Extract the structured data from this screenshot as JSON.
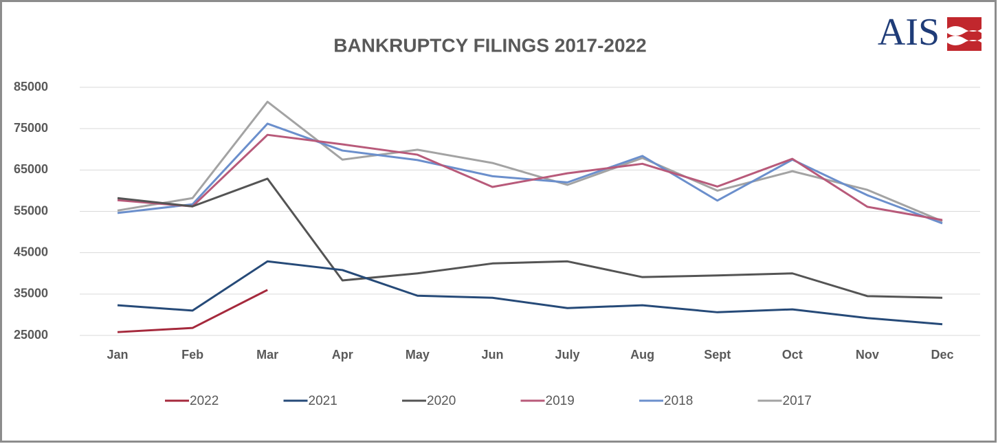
{
  "logo": "AIS",
  "chart_data": {
    "type": "line",
    "title": "BANKRUPTCY FILINGS 2017-2022",
    "categories": [
      "Jan",
      "Feb",
      "Mar",
      "Apr",
      "May",
      "Jun",
      "July",
      "Aug",
      "Sept",
      "Oct",
      "Nov",
      "Dec"
    ],
    "series": [
      {
        "name": "2022",
        "color": "#a5293c",
        "values": [
          25800,
          26800,
          36000,
          null,
          null,
          null,
          null,
          null,
          null,
          null,
          null,
          null
        ]
      },
      {
        "name": "2021",
        "color": "#264a78",
        "values": [
          32300,
          31000,
          42900,
          40800,
          34600,
          34100,
          31600,
          32300,
          30600,
          31300,
          29200,
          27700
        ]
      },
      {
        "name": "2020",
        "color": "#545454",
        "values": [
          58200,
          56200,
          62900,
          38300,
          40000,
          42400,
          42900,
          39100,
          39500,
          40000,
          34500,
          34100
        ]
      },
      {
        "name": "2019",
        "color": "#b85a7a",
        "values": [
          57700,
          56200,
          73500,
          71200,
          68700,
          60900,
          64200,
          66500,
          61000,
          67700,
          56100,
          52900
        ]
      },
      {
        "name": "2018",
        "color": "#6b8fcc",
        "values": [
          54600,
          56700,
          76200,
          69700,
          67400,
          63500,
          62000,
          68400,
          57600,
          67500,
          58900,
          52100
        ]
      },
      {
        "name": "2017",
        "color": "#a3a3a3",
        "values": [
          55200,
          58200,
          81500,
          67500,
          69900,
          66700,
          61400,
          67900,
          60000,
          64700,
          60200,
          52600
        ]
      }
    ],
    "ylim": [
      25000,
      85000
    ],
    "yticks": [
      25000,
      35000,
      45000,
      55000,
      65000,
      75000,
      85000
    ],
    "grid": true,
    "legend": "bottom"
  }
}
